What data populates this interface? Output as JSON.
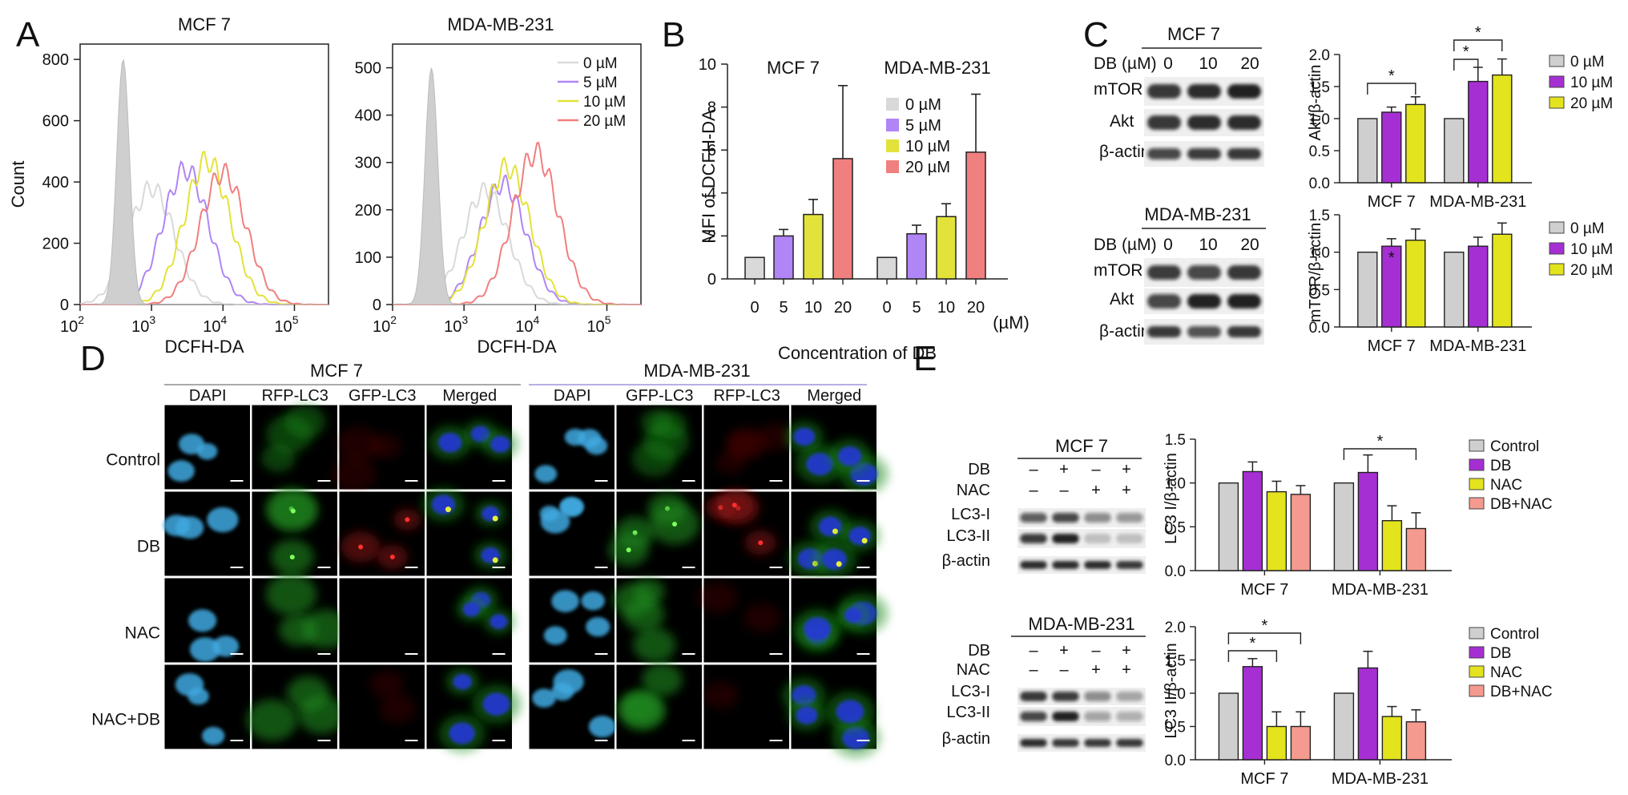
{
  "panels": {
    "A": "A",
    "B": "B",
    "C": "C",
    "D": "D",
    "E": "E"
  },
  "colors": {
    "zero": "#d9d9d9",
    "c5": "#b085f5",
    "c10": "#e2e23a",
    "c20": "#f07f7f",
    "ctrl": "#cfcfcf",
    "db": "#a52fd3",
    "nac": "#e3e31e",
    "dbnac": "#f49a8f"
  },
  "panelA": {
    "xlabel": "DCFH-DA",
    "ylabel": "Count",
    "xticks": [
      "10",
      "10",
      "10",
      "10"
    ],
    "xtick_exp": [
      "2",
      "3",
      "4",
      "5"
    ],
    "mcf7": {
      "title": "MCF 7",
      "yticks": [
        "0",
        "200",
        "400",
        "600",
        "800"
      ]
    },
    "mda": {
      "title": "MDA-MB-231",
      "yticks": [
        "0",
        "100",
        "200",
        "300",
        "400",
        "500"
      ]
    },
    "legend": [
      "0 µM",
      "5 µM",
      "10 µM",
      "20 µM"
    ]
  },
  "panelB": {
    "ylabel": "MFI of DCFH-DA",
    "xlabel": "Concentration of DB",
    "unit": "(µM)",
    "group_titles": [
      "MCF 7",
      "MDA-MB-231"
    ],
    "xticks": [
      "0",
      "5",
      "10",
      "20",
      "0",
      "5",
      "10",
      "20"
    ],
    "yticks": [
      "0",
      "2",
      "4",
      "6",
      "8",
      "10"
    ],
    "legend": [
      "0 µM",
      "5 µM",
      "10 µM",
      "20 µM"
    ]
  },
  "panelC": {
    "blot1": {
      "cell": "MCF 7",
      "dose_label": "DB (µM)",
      "doses": [
        "0",
        "10",
        "20"
      ],
      "rows": [
        "mTOR",
        "Akt",
        "β-actin"
      ]
    },
    "blot2": {
      "cell": "MDA-MB-231",
      "dose_label": "DB (µM)",
      "doses": [
        "0",
        "10",
        "20"
      ],
      "rows": [
        "mTOR",
        "Akt",
        "β-actin"
      ]
    },
    "chart1": {
      "ylabel": "Akt/β-actin",
      "yticks": [
        "0.0",
        "0.5",
        "1.0",
        "1.5",
        "2.0"
      ],
      "groups": [
        "MCF 7",
        "MDA-MB-231"
      ],
      "legend": [
        "0 µM",
        "10 µM",
        "20 µM"
      ],
      "star": "*"
    },
    "chart2": {
      "ylabel": "mTOR/β-actin",
      "yticks": [
        "0.0",
        "0.5",
        "1.0",
        "1.5"
      ],
      "groups": [
        "MCF 7",
        "MDA-MB-231"
      ],
      "legend": [
        "0 µM",
        "10 µM",
        "20 µM"
      ],
      "star": "*"
    }
  },
  "panelD": {
    "group1": "MCF 7",
    "group2": "MDA-MB-231",
    "cols1": [
      "DAPI",
      "RFP-LC3",
      "GFP-LC3",
      "Merged"
    ],
    "cols2": [
      "DAPI",
      "GFP-LC3",
      "RFP-LC3",
      "Merged"
    ],
    "rows": [
      "Control",
      "DB",
      "NAC",
      "NAC+DB"
    ]
  },
  "panelE": {
    "blot1": {
      "cell": "MCF 7",
      "rows": [
        "DB",
        "NAC"
      ],
      "signs": [
        [
          "–",
          "+",
          "–",
          "+"
        ],
        [
          "–",
          "–",
          "+",
          "+"
        ]
      ],
      "bands": [
        "LC3-I",
        "LC3-II",
        "β-actin"
      ]
    },
    "blot2": {
      "cell": "MDA-MB-231",
      "rows": [
        "DB",
        "NAC"
      ],
      "signs": [
        [
          "–",
          "+",
          "–",
          "+"
        ],
        [
          "–",
          "–",
          "+",
          "+"
        ]
      ],
      "bands": [
        "LC3-I",
        "LC3-II",
        "β-actin"
      ]
    },
    "chart1": {
      "ylabel": "LC3 I/β-actin",
      "yticks": [
        "0.0",
        "0.5",
        "1.0",
        "1.5"
      ],
      "groups": [
        "MCF 7",
        "MDA-MB-231"
      ],
      "legend": [
        "Control",
        "DB",
        "NAC",
        "DB+NAC"
      ],
      "star": "*"
    },
    "chart2": {
      "ylabel": "LC3 II/β-actin",
      "yticks": [
        "0.0",
        "0.5",
        "1.0",
        "1.5",
        "2.0"
      ],
      "groups": [
        "MCF 7",
        "MDA-MB-231"
      ],
      "legend": [
        "Control",
        "DB",
        "NAC",
        "DB+NAC"
      ],
      "star": "*"
    }
  },
  "chart_data": [
    {
      "type": "line",
      "panel": "A-MCF7",
      "title": "MCF 7",
      "xlabel": "DCFH-DA",
      "ylabel": "Count",
      "xscale": "log",
      "xlim": [
        100,
        300000
      ],
      "ylim": [
        0,
        850
      ],
      "series": [
        {
          "name": "0 µM",
          "color": "#d9d9d9",
          "peak_x": 1000,
          "peak_y": 380
        },
        {
          "name": "5 µM",
          "color": "#b085f5",
          "peak_x": 3000,
          "peak_y": 440
        },
        {
          "name": "10 µM",
          "color": "#e2e23a",
          "peak_x": 6000,
          "peak_y": 470
        },
        {
          "name": "20 µM",
          "color": "#f07f7f",
          "peak_x": 10000,
          "peak_y": 430
        },
        {
          "name": "control (shaded)",
          "color": "#cfcfcf",
          "peak_x": 400,
          "peak_y": 800
        }
      ]
    },
    {
      "type": "line",
      "panel": "A-MDA",
      "title": "MDA-MB-231",
      "xlabel": "DCFH-DA",
      "xscale": "log",
      "xlim": [
        100,
        300000
      ],
      "ylim": [
        0,
        550
      ],
      "series": [
        {
          "name": "0 µM",
          "color": "#d9d9d9",
          "peak_x": 2000,
          "peak_y": 240
        },
        {
          "name": "5 µM",
          "color": "#b085f5",
          "peak_x": 3500,
          "peak_y": 255
        },
        {
          "name": "10 µM",
          "color": "#e2e23a",
          "peak_x": 4000,
          "peak_y": 290
        },
        {
          "name": "20 µM",
          "color": "#f07f7f",
          "peak_x": 10000,
          "peak_y": 320
        },
        {
          "name": "control (shaded)",
          "color": "#cfcfcf",
          "peak_x": 350,
          "peak_y": 500
        }
      ]
    },
    {
      "type": "bar",
      "panel": "B",
      "ylabel": "MFI of DCFH-DA",
      "xlabel": "Concentration of DB",
      "ylim": [
        0,
        10
      ],
      "categories": [
        "0",
        "5",
        "10",
        "20",
        "0",
        "5",
        "10",
        "20"
      ],
      "values": [
        1.0,
        2.0,
        3.0,
        5.6,
        1.0,
        2.1,
        2.9,
        5.9
      ],
      "errors": [
        0,
        0.3,
        0.7,
        3.4,
        0,
        0.4,
        0.6,
        2.7
      ],
      "colors": [
        "#d9d9d9",
        "#b085f5",
        "#e2e23a",
        "#f07f7f",
        "#d9d9d9",
        "#b085f5",
        "#e2e23a",
        "#f07f7f"
      ]
    },
    {
      "type": "bar",
      "panel": "C-Akt",
      "ylabel": "Akt/β-actin",
      "ylim": [
        0,
        2
      ],
      "categories": [
        "MCF 7",
        "MDA-MB-231"
      ],
      "series": [
        {
          "name": "0 µM",
          "color": "#cfcfcf",
          "values": [
            1.0,
            1.0
          ],
          "errors": [
            0,
            0
          ]
        },
        {
          "name": "10 µM",
          "color": "#a52fd3",
          "values": [
            1.1,
            1.58
          ],
          "errors": [
            0.08,
            0.22
          ]
        },
        {
          "name": "20 µM",
          "color": "#e3e31e",
          "values": [
            1.22,
            1.68
          ],
          "errors": [
            0.12,
            0.25
          ]
        }
      ]
    },
    {
      "type": "bar",
      "panel": "C-mTOR",
      "ylabel": "mTOR/β-actin",
      "ylim": [
        0,
        1.5
      ],
      "categories": [
        "MCF 7",
        "MDA-MB-231"
      ],
      "series": [
        {
          "name": "0 µM",
          "color": "#cfcfcf",
          "values": [
            1.0,
            1.0
          ],
          "errors": [
            0,
            0
          ]
        },
        {
          "name": "10 µM",
          "color": "#a52fd3",
          "values": [
            1.08,
            1.08
          ],
          "errors": [
            0.1,
            0.12
          ]
        },
        {
          "name": "20 µM",
          "color": "#e3e31e",
          "values": [
            1.16,
            1.24
          ],
          "errors": [
            0.15,
            0.15
          ]
        }
      ]
    },
    {
      "type": "bar",
      "panel": "E-LC3I",
      "ylabel": "LC3 I/β-actin",
      "ylim": [
        0,
        1.5
      ],
      "categories": [
        "MCF 7",
        "MDA-MB-231"
      ],
      "series": [
        {
          "name": "Control",
          "color": "#cfcfcf",
          "values": [
            1.0,
            1.0
          ],
          "errors": [
            0,
            0
          ]
        },
        {
          "name": "DB",
          "color": "#a52fd3",
          "values": [
            1.13,
            1.12
          ],
          "errors": [
            0.11,
            0.2
          ]
        },
        {
          "name": "NAC",
          "color": "#e3e31e",
          "values": [
            0.9,
            0.57
          ],
          "errors": [
            0.12,
            0.17
          ]
        },
        {
          "name": "DB+NAC",
          "color": "#f49a8f",
          "values": [
            0.87,
            0.48
          ],
          "errors": [
            0.1,
            0.18
          ]
        }
      ]
    },
    {
      "type": "bar",
      "panel": "E-LC3II",
      "ylabel": "LC3 II/β-actin",
      "ylim": [
        0,
        2
      ],
      "categories": [
        "MCF 7",
        "MDA-MB-231"
      ],
      "series": [
        {
          "name": "Control",
          "color": "#cfcfcf",
          "values": [
            1.0,
            1.0
          ],
          "errors": [
            0,
            0
          ]
        },
        {
          "name": "DB",
          "color": "#a52fd3",
          "values": [
            1.4,
            1.38
          ],
          "errors": [
            0.12,
            0.25
          ]
        },
        {
          "name": "NAC",
          "color": "#e3e31e",
          "values": [
            0.5,
            0.65
          ],
          "errors": [
            0.22,
            0.15
          ]
        },
        {
          "name": "DB+NAC",
          "color": "#f49a8f",
          "values": [
            0.5,
            0.57
          ],
          "errors": [
            0.22,
            0.18
          ]
        }
      ]
    }
  ]
}
